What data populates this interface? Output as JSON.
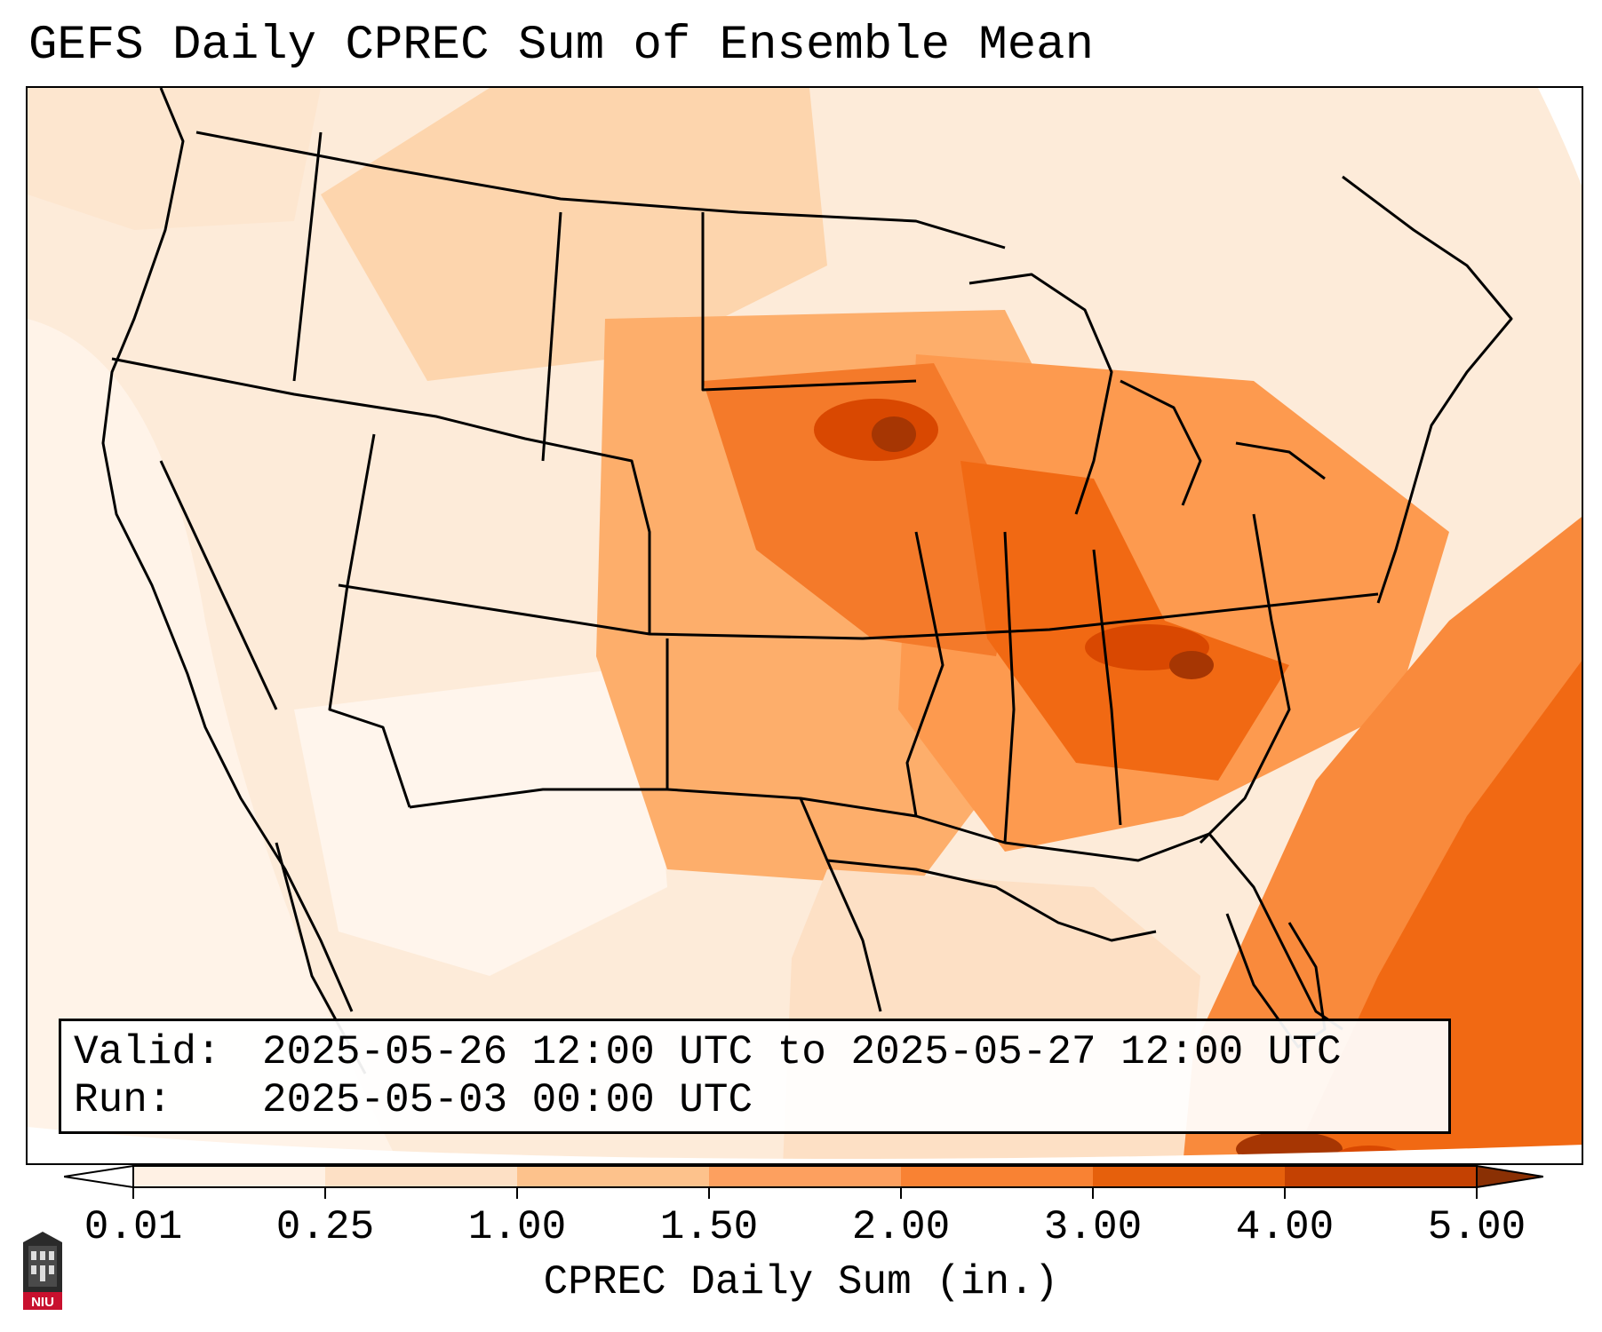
{
  "title": "GEFS Daily CPREC Sum of Ensemble Mean",
  "info": {
    "valid_key": "Valid:",
    "valid_value": "2025-05-26 12:00 UTC to 2025-05-27 12:00 UTC",
    "run_key": "Run:",
    "run_value": "2025-05-03 00:00 UTC"
  },
  "colorbar": {
    "label": "CPREC Daily Sum (in.)",
    "levels": [
      "0.01",
      "0.25",
      "1.00",
      "1.50",
      "2.00",
      "3.00",
      "4.00",
      "5.00"
    ],
    "colors": [
      "#fee9d3",
      "#fdd1a3",
      "#fdae6b",
      "#fd8d3c",
      "#f16913",
      "#d94801",
      "#a63603",
      "#7f2704"
    ],
    "extend": "both"
  },
  "map": {
    "region": "CONUS",
    "max_regions": [
      "Upper Midwest",
      "Tennessee",
      "Gulf of Mexico / Cuba"
    ]
  },
  "logo": {
    "text": "NIU"
  }
}
